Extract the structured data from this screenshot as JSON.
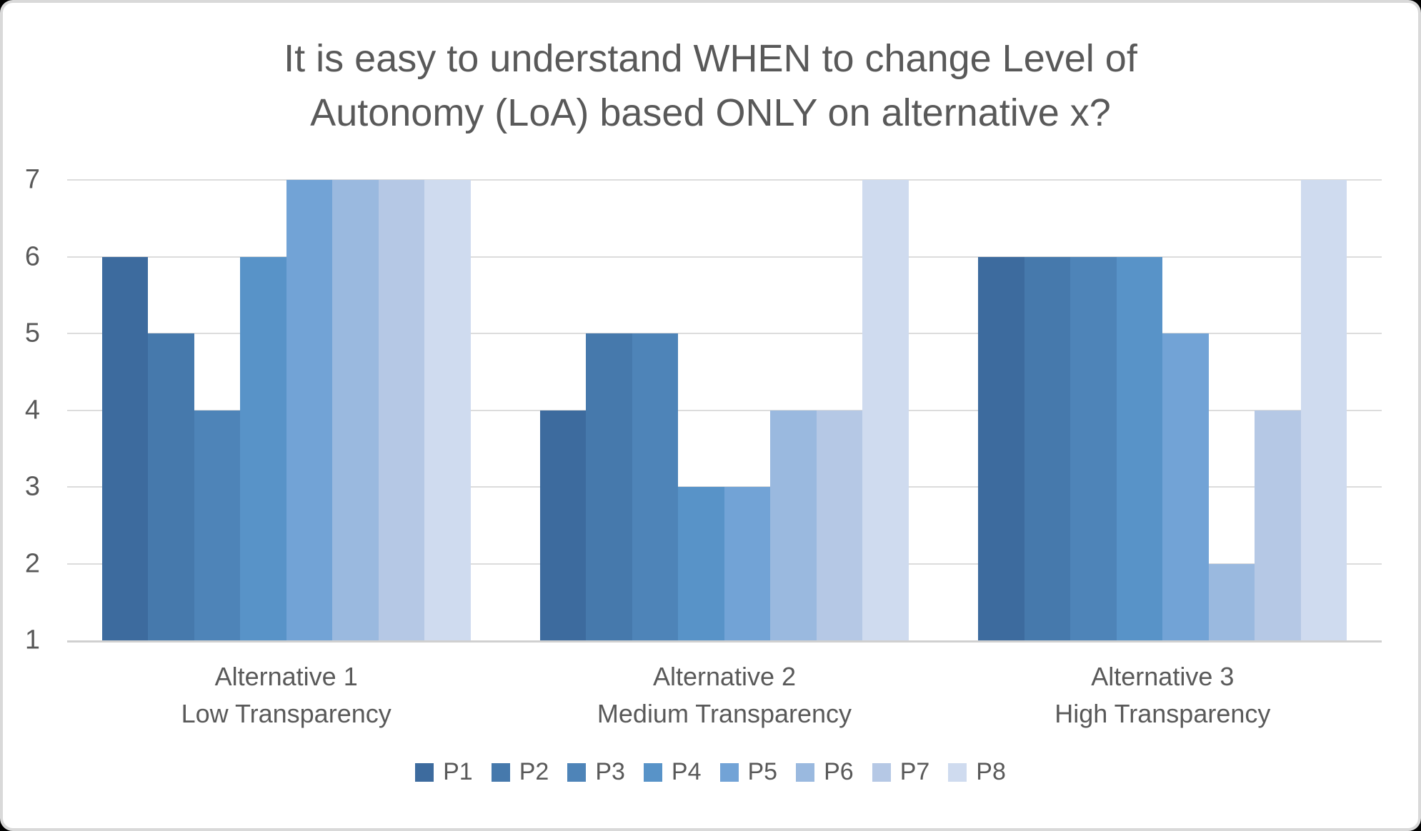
{
  "title": {
    "lines": [
      "It is easy to understand WHEN to change Level of",
      "Autonomy (LoA) based ONLY on alternative x?"
    ]
  },
  "chart_data": {
    "type": "bar",
    "title": "It is easy to understand WHEN to change Level of Autonomy (LoA) based ONLY on alternative x?",
    "categories": [
      {
        "label": "Alternative 1",
        "sublabel": "Low Transparency"
      },
      {
        "label": "Alternative 2",
        "sublabel": "Medium Transparency"
      },
      {
        "label": "Alternative 3",
        "sublabel": "High Transparency"
      }
    ],
    "series": [
      {
        "name": "P1",
        "color": "#3D6B9E",
        "values": [
          6,
          4,
          6
        ]
      },
      {
        "name": "P2",
        "color": "#4679AC",
        "values": [
          5,
          5,
          6
        ]
      },
      {
        "name": "P3",
        "color": "#4E84B8",
        "values": [
          4,
          5,
          6
        ]
      },
      {
        "name": "P4",
        "color": "#5893C8",
        "values": [
          6,
          3,
          6
        ]
      },
      {
        "name": "P5",
        "color": "#72A3D6",
        "values": [
          7,
          3,
          5
        ]
      },
      {
        "name": "P6",
        "color": "#9AB9DF",
        "values": [
          7,
          4,
          2
        ]
      },
      {
        "name": "P7",
        "color": "#B5C8E5",
        "values": [
          7,
          4,
          4
        ]
      },
      {
        "name": "P8",
        "color": "#CFDBEF",
        "values": [
          7,
          7,
          7
        ]
      }
    ],
    "ylim": [
      1,
      7
    ],
    "yticks": [
      1,
      2,
      3,
      4,
      5,
      6,
      7
    ],
    "grid": true,
    "legend_position": "bottom"
  },
  "style_colors": {
    "text": "#595959",
    "gridline": "#DCDCDC",
    "axis_line": "#D0D0D0",
    "card_border": "#D9D9D9",
    "card_background": "#FFFFFF",
    "page_background": "#000000"
  }
}
